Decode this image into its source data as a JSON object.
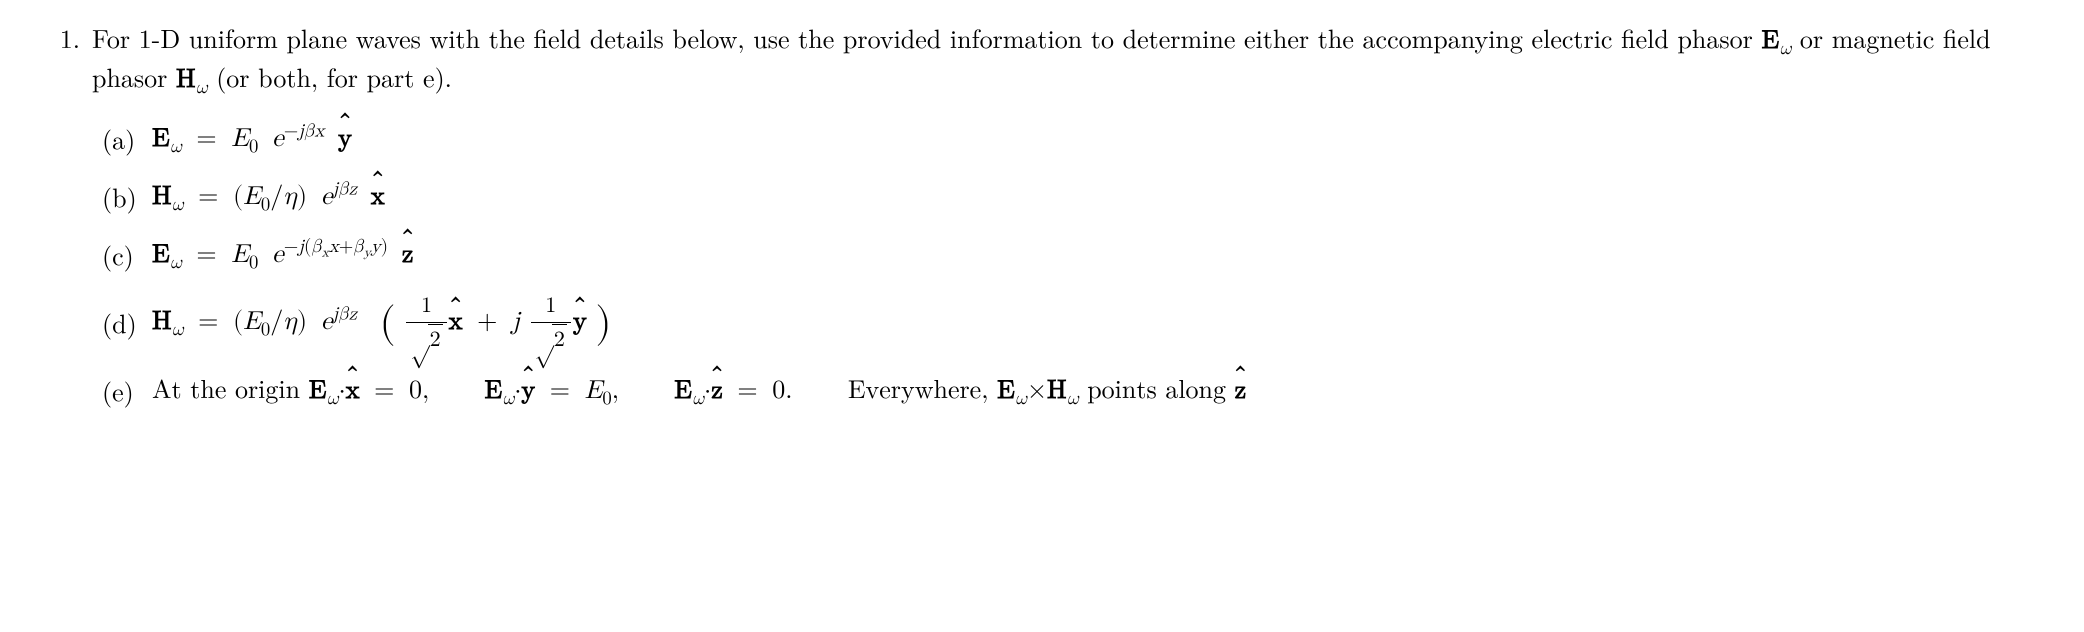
{
  "problem_number": "1.",
  "intro_text_parts": {
    "p1": "For 1-D uniform plane waves with the field details below, use the provided information to determine either the accompanying electric field phasor ",
    "p2": " or magnetic field phasor ",
    "p3": " (or both, for part e)."
  },
  "symbols": {
    "E": "E",
    "H": "H",
    "omega": "ω",
    "E0": "E",
    "zero": "0",
    "eta": "η",
    "beta": "β",
    "betax": "β",
    "betay": "β",
    "j": "j",
    "e": "e",
    "x": "x",
    "y": "y",
    "z": "z",
    "xhat": "x",
    "yhat": "y",
    "zhat": "z",
    "eq": "=",
    "plus": "+",
    "minus": "−",
    "slash": "/",
    "dot": "·",
    "times": "×",
    "lparen": "(",
    "rparen": ")",
    "comma": ",",
    "period": ".",
    "one": "1",
    "two": "2"
  },
  "subparts": {
    "a": {
      "label": "(a)"
    },
    "b": {
      "label": "(b)"
    },
    "c": {
      "label": "(c)"
    },
    "d": {
      "label": "(d)"
    },
    "e": {
      "label": "(e)",
      "text_origin": "At the origin ",
      "text_everywhere": "Everywhere, ",
      "text_points": " points along "
    }
  },
  "style": {
    "font_size_pt": 20,
    "text_color": "#000000",
    "background_color": "#ffffff",
    "font_family": "Computer Modern / Latin Modern serif"
  }
}
